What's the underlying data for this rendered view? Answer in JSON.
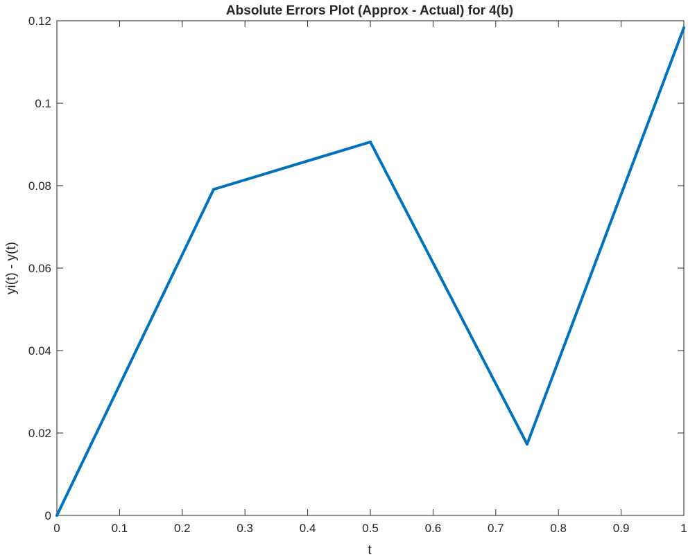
{
  "chart_data": {
    "type": "line",
    "title": "Absolute Errors Plot (Approx - Actual) for 4(b)",
    "xlabel": "t",
    "ylabel": "yi(t) - y(t)",
    "xlim": [
      0,
      1
    ],
    "ylim": [
      0,
      0.12
    ],
    "grid": false,
    "legend": "none",
    "x_ticks": [
      "0",
      "0.1",
      "0.2",
      "0.3",
      "0.4",
      "0.5",
      "0.6",
      "0.7",
      "0.8",
      "0.9",
      "1"
    ],
    "y_ticks": [
      "0",
      "0.02",
      "0.04",
      "0.06",
      "0.08",
      "0.1",
      "0.12"
    ],
    "series": [
      {
        "x": [
          0,
          0.25,
          0.5,
          0.75,
          1
        ],
        "values": [
          0,
          0.0791,
          0.0906,
          0.0173,
          0.1183
        ],
        "color": "#0072BD"
      }
    ]
  }
}
